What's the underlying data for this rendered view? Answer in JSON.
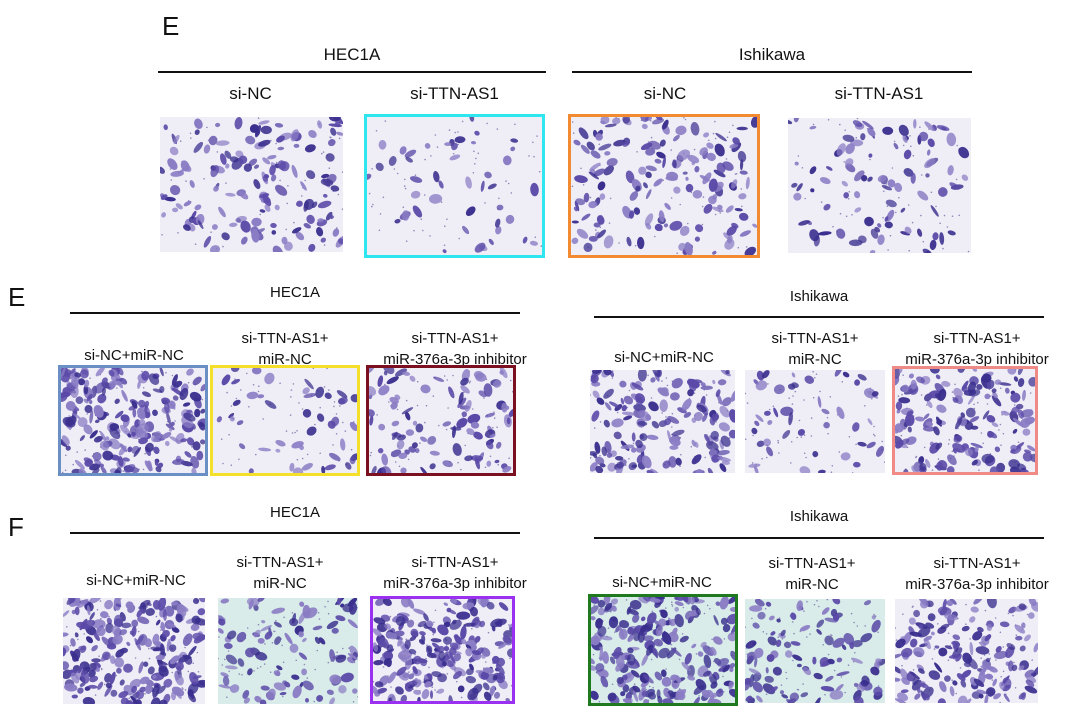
{
  "panels": [
    {
      "letter": "E",
      "groups": [
        {
          "title": "HEC1A",
          "conditions": [
            [
              "si-NC"
            ],
            [
              "si-TTN-AS1"
            ]
          ]
        },
        {
          "title": "Ishikawa",
          "conditions": [
            [
              "si-NC"
            ],
            [
              "si-TTN-AS1"
            ]
          ]
        }
      ]
    },
    {
      "letter": "E",
      "groups": [
        {
          "title": "HEC1A",
          "conditions": [
            [
              "si-NC+miR-NC"
            ],
            [
              "si-TTN-AS1+",
              "miR-NC"
            ],
            [
              "si-TTN-AS1+",
              "miR-376a-3p inhibitor"
            ]
          ]
        },
        {
          "title": "Ishikawa",
          "conditions": [
            [
              "si-NC+miR-NC"
            ],
            [
              "si-TTN-AS1+",
              "miR-NC"
            ],
            [
              "si-TTN-AS1+",
              "miR-376a-3p inhibitor"
            ]
          ]
        }
      ]
    },
    {
      "letter": "F",
      "groups": [
        {
          "title": "HEC1A",
          "conditions": [
            [
              "si-NC+miR-NC"
            ],
            [
              "si-TTN-AS1+",
              "miR-NC"
            ],
            [
              "si-TTN-AS1+",
              "miR-376a-3p inhibitor"
            ]
          ]
        },
        {
          "title": "Ishikawa",
          "conditions": [
            [
              "si-NC+miR-NC"
            ],
            [
              "si-TTN-AS1+",
              "miR-NC"
            ],
            [
              "si-TTN-AS1+",
              "miR-376a-3p inhibitor"
            ]
          ]
        }
      ]
    }
  ],
  "colors": {
    "stain_dark": "#3a2f8e",
    "stain_mid": "#5b4aa8",
    "stain_light": "#8a7cc4",
    "bg_plain": "#efeef7",
    "bg_teal": "#d9ece9",
    "frame_cyan": "#2ee6f0",
    "frame_orange": "#f28a32",
    "frame_blue": "#6a8fc4",
    "frame_yellow": "#f4e02a",
    "frame_darkred": "#7a1020",
    "frame_pink": "#f08a86",
    "frame_purple": "#9b30f0",
    "frame_green": "#1f7a1f"
  },
  "images": [
    {
      "name": "e1-hec1a-si-nc",
      "density": "high",
      "bg": "plain",
      "frame": ""
    },
    {
      "name": "e1-hec1a-si-ttn-as1",
      "density": "low",
      "bg": "plain",
      "frame": "frame_cyan"
    },
    {
      "name": "e1-ishikawa-si-nc",
      "density": "high",
      "bg": "plain",
      "frame": "frame_orange"
    },
    {
      "name": "e1-ishikawa-si-ttn-as1",
      "density": "medium",
      "bg": "plain",
      "frame": ""
    },
    {
      "name": "e2-hec1a-si-nc-mir-nc",
      "density": "very-high",
      "bg": "plain",
      "frame": "frame_blue"
    },
    {
      "name": "e2-hec1a-si-ttn-as1-mir-nc",
      "density": "low",
      "bg": "plain",
      "frame": "frame_yellow"
    },
    {
      "name": "e2-hec1a-si-ttn-as1-inhibitor",
      "density": "medium",
      "bg": "plain",
      "frame": "frame_darkred"
    },
    {
      "name": "e2-ishikawa-si-nc-mir-nc",
      "density": "high",
      "bg": "plain",
      "frame": ""
    },
    {
      "name": "e2-ishikawa-si-ttn-as1-mir-nc",
      "density": "low",
      "bg": "plain",
      "frame": ""
    },
    {
      "name": "e2-ishikawa-si-ttn-as1-inhibitor",
      "density": "high",
      "bg": "plain",
      "frame": "frame_pink"
    },
    {
      "name": "f-hec1a-si-nc-mir-nc",
      "density": "very-high",
      "bg": "plain",
      "frame": ""
    },
    {
      "name": "f-hec1a-si-ttn-as1-mir-nc",
      "density": "medium",
      "bg": "teal",
      "frame": ""
    },
    {
      "name": "f-hec1a-si-ttn-as1-inhibitor",
      "density": "very-high",
      "bg": "plain",
      "frame": "frame_purple"
    },
    {
      "name": "f-ishikawa-si-nc-mir-nc",
      "density": "very-high",
      "bg": "teal",
      "frame": "frame_green"
    },
    {
      "name": "f-ishikawa-si-ttn-as1-mir-nc",
      "density": "medium",
      "bg": "teal",
      "frame": ""
    },
    {
      "name": "f-ishikawa-si-ttn-as1-inhibitor",
      "density": "high",
      "bg": "plain",
      "frame": ""
    }
  ]
}
